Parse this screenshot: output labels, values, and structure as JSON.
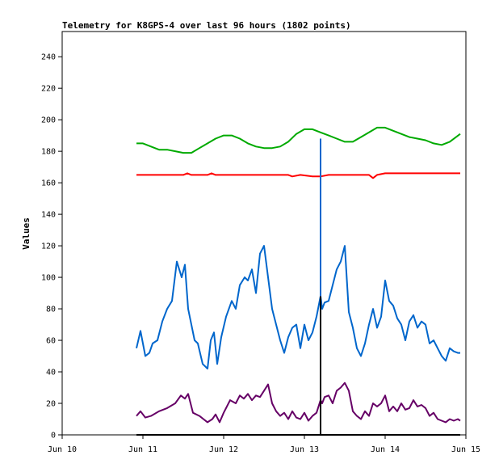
{
  "chart_data": {
    "type": "line",
    "title": "Telemetry for K8GPS-4 over last 96 hours (1802 points)",
    "xlabel": "",
    "ylabel": "Values",
    "x_ticks": [
      "Jun 10",
      "Jun 11",
      "Jun 12",
      "Jun 13",
      "Jun 14",
      "Jun 15"
    ],
    "xlim": [
      10.0,
      15.0
    ],
    "y_ticks": [
      0,
      20,
      40,
      60,
      80,
      100,
      120,
      140,
      160,
      180,
      200,
      220,
      240
    ],
    "ylim": [
      0,
      256
    ],
    "grid": false,
    "legend": "none",
    "series": [
      {
        "color": "#00aa00",
        "x": [
          10.92,
          11.0,
          11.1,
          11.2,
          11.3,
          11.4,
          11.5,
          11.6,
          11.7,
          11.8,
          11.9,
          12.0,
          12.1,
          12.2,
          12.3,
          12.4,
          12.5,
          12.6,
          12.7,
          12.8,
          12.9,
          13.0,
          13.1,
          13.2,
          13.3,
          13.4,
          13.5,
          13.6,
          13.7,
          13.8,
          13.9,
          14.0,
          14.1,
          14.2,
          14.3,
          14.4,
          14.5,
          14.6,
          14.7,
          14.8,
          14.93
        ],
        "values": [
          185,
          185,
          183,
          181,
          181,
          180,
          179,
          179,
          182,
          185,
          188,
          190,
          190,
          188,
          185,
          183,
          182,
          182,
          183,
          186,
          191,
          194,
          194,
          192,
          190,
          188,
          186,
          186,
          189,
          192,
          195,
          195,
          193,
          191,
          189,
          188,
          187,
          185,
          184,
          186,
          191
        ]
      },
      {
        "color": "#ff0000",
        "x": [
          10.92,
          11.2,
          11.5,
          11.55,
          11.6,
          11.8,
          11.85,
          11.9,
          12.2,
          12.5,
          12.8,
          12.85,
          12.95,
          13.1,
          13.2,
          13.3,
          13.5,
          13.8,
          13.85,
          13.9,
          14.0,
          14.3,
          14.6,
          14.93
        ],
        "values": [
          165,
          165,
          165,
          166,
          165,
          165,
          166,
          165,
          165,
          165,
          165,
          164,
          165,
          164,
          164,
          165,
          165,
          165,
          163,
          165,
          166,
          166,
          166,
          166
        ]
      },
      {
        "color": "#0066cc",
        "x": [
          10.92,
          10.97,
          11.03,
          11.08,
          11.12,
          11.18,
          11.24,
          11.3,
          11.36,
          11.42,
          11.48,
          11.52,
          11.56,
          11.6,
          11.64,
          11.68,
          11.74,
          11.8,
          11.84,
          11.88,
          11.92,
          11.97,
          12.03,
          12.1,
          12.15,
          12.2,
          12.26,
          12.3,
          12.35,
          12.4,
          12.45,
          12.5,
          12.55,
          12.6,
          12.65,
          12.7,
          12.75,
          12.8,
          12.85,
          12.9,
          12.95,
          13.0,
          13.05,
          13.1,
          13.15,
          13.2,
          13.22,
          13.25,
          13.3,
          13.35,
          13.4,
          13.45,
          13.5,
          13.55,
          13.6,
          13.65,
          13.7,
          13.75,
          13.8,
          13.85,
          13.9,
          13.95,
          14.0,
          14.05,
          14.1,
          14.15,
          14.2,
          14.25,
          14.3,
          14.35,
          14.4,
          14.45,
          14.5,
          14.55,
          14.6,
          14.65,
          14.7,
          14.75,
          14.8,
          14.85,
          14.9,
          14.93
        ],
        "values": [
          55,
          66,
          50,
          52,
          58,
          60,
          72,
          80,
          85,
          110,
          100,
          108,
          80,
          70,
          60,
          58,
          45,
          42,
          60,
          65,
          45,
          62,
          75,
          85,
          80,
          95,
          100,
          98,
          105,
          90,
          115,
          120,
          100,
          80,
          70,
          60,
          52,
          62,
          68,
          70,
          55,
          70,
          60,
          65,
          75,
          88,
          80,
          84,
          85,
          95,
          105,
          110,
          120,
          78,
          68,
          55,
          50,
          58,
          70,
          80,
          68,
          75,
          98,
          85,
          82,
          74,
          70,
          60,
          72,
          76,
          68,
          72,
          70,
          58,
          60,
          55,
          50,
          47,
          55,
          53,
          52,
          52
        ]
      },
      {
        "color": "#660066",
        "x": [
          10.92,
          10.97,
          11.03,
          11.1,
          11.2,
          11.3,
          11.4,
          11.47,
          11.52,
          11.56,
          11.62,
          11.7,
          11.8,
          11.86,
          11.9,
          11.95,
          12.0,
          12.08,
          12.15,
          12.2,
          12.25,
          12.3,
          12.35,
          12.4,
          12.45,
          12.5,
          12.55,
          12.6,
          12.65,
          12.7,
          12.75,
          12.8,
          12.85,
          12.9,
          12.95,
          13.0,
          13.05,
          13.1,
          13.15,
          13.2,
          13.22,
          13.25,
          13.3,
          13.35,
          13.4,
          13.45,
          13.5,
          13.55,
          13.6,
          13.65,
          13.7,
          13.75,
          13.8,
          13.85,
          13.9,
          13.95,
          14.0,
          14.05,
          14.1,
          14.15,
          14.2,
          14.25,
          14.3,
          14.35,
          14.4,
          14.45,
          14.5,
          14.55,
          14.6,
          14.65,
          14.7,
          14.75,
          14.8,
          14.85,
          14.9,
          14.93
        ],
        "values": [
          12,
          15,
          11,
          12,
          15,
          17,
          20,
          25,
          23,
          26,
          14,
          12,
          8,
          10,
          13,
          8,
          14,
          22,
          20,
          25,
          23,
          26,
          22,
          25,
          24,
          28,
          32,
          20,
          15,
          12,
          14,
          10,
          15,
          11,
          10,
          14,
          9,
          12,
          14,
          22,
          20,
          24,
          25,
          20,
          28,
          30,
          33,
          28,
          15,
          12,
          10,
          15,
          12,
          20,
          18,
          20,
          25,
          15,
          18,
          15,
          20,
          16,
          17,
          22,
          18,
          19,
          17,
          12,
          14,
          10,
          9,
          8,
          10,
          9,
          10,
          9
        ]
      },
      {
        "color": "#000000",
        "x": [
          10.92,
          13.2,
          14.93
        ],
        "values": [
          0,
          0,
          0
        ]
      }
    ],
    "markers": [
      {
        "x": 13.2,
        "y_from": 0,
        "y_to": 88,
        "color": "#000000"
      },
      {
        "x": 13.2,
        "y_from": 88,
        "y_to": 188,
        "color": "#0066cc"
      }
    ]
  }
}
